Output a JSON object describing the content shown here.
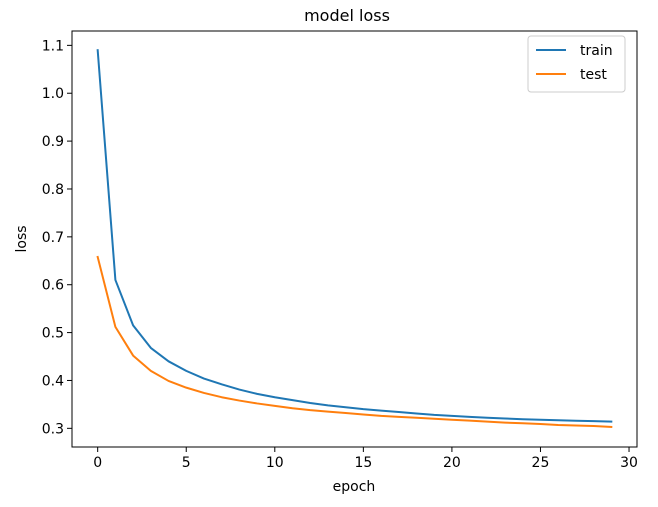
{
  "chart_data": {
    "type": "line",
    "title": "model loss",
    "xlabel": "epoch",
    "ylabel": "loss",
    "xlim": [
      -1.45,
      30.45
    ],
    "ylim": [
      0.261,
      1.13
    ],
    "xticks": [
      0,
      5,
      10,
      15,
      20,
      25,
      30
    ],
    "xtick_labels": [
      "0",
      "5",
      "10",
      "15",
      "20",
      "25",
      "30"
    ],
    "yticks": [
      0.3,
      0.4,
      0.5,
      0.6,
      0.7,
      0.8,
      0.9,
      1.0,
      1.1
    ],
    "ytick_labels": [
      "0.3",
      "0.4",
      "0.5",
      "0.6",
      "0.7",
      "0.8",
      "0.9",
      "1.0",
      "1.1"
    ],
    "grid": false,
    "legend_position": "top-right",
    "x": [
      0,
      1,
      2,
      3,
      4,
      5,
      6,
      7,
      8,
      9,
      10,
      11,
      12,
      13,
      14,
      15,
      16,
      17,
      18,
      19,
      20,
      21,
      22,
      23,
      24,
      25,
      26,
      27,
      28,
      29
    ],
    "series": [
      {
        "name": "train",
        "color": "#1f77b4",
        "values": [
          1.09,
          0.61,
          0.515,
          0.468,
          0.44,
          0.42,
          0.404,
          0.392,
          0.381,
          0.372,
          0.365,
          0.359,
          0.353,
          0.348,
          0.344,
          0.34,
          0.337,
          0.334,
          0.331,
          0.328,
          0.326,
          0.324,
          0.322,
          0.3205,
          0.319,
          0.318,
          0.317,
          0.3158,
          0.315,
          0.314
        ]
      },
      {
        "name": "test",
        "color": "#ff7f0e",
        "values": [
          0.658,
          0.512,
          0.452,
          0.42,
          0.399,
          0.385,
          0.374,
          0.365,
          0.358,
          0.352,
          0.347,
          0.342,
          0.338,
          0.335,
          0.332,
          0.329,
          0.326,
          0.324,
          0.322,
          0.32,
          0.318,
          0.316,
          0.314,
          0.312,
          0.3105,
          0.309,
          0.307,
          0.306,
          0.305,
          0.303
        ]
      }
    ]
  }
}
